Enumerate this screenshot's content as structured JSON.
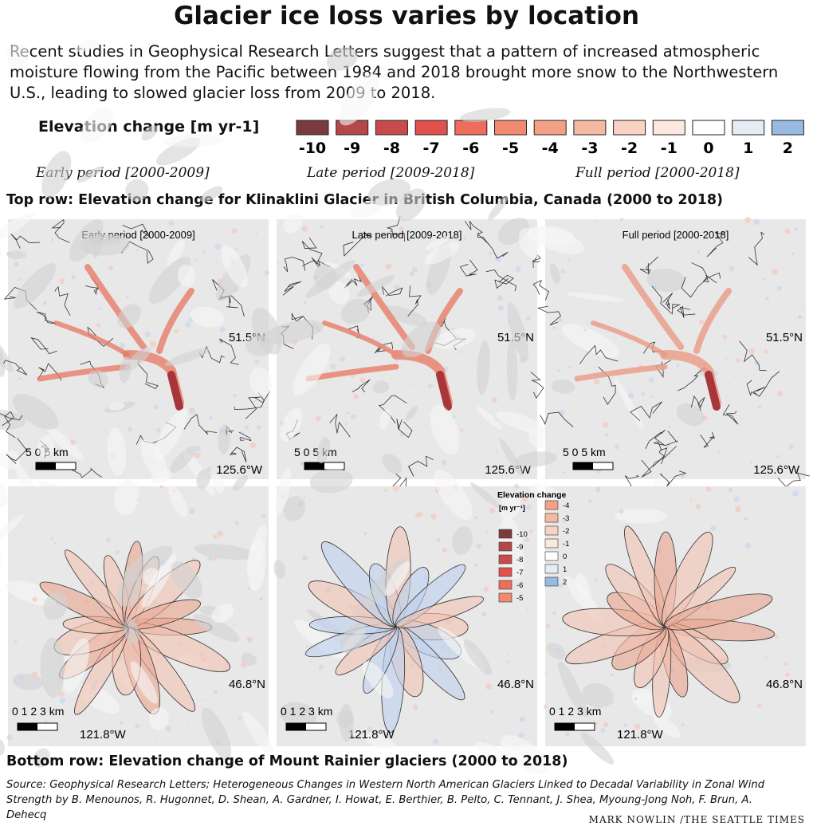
{
  "header": {
    "title": "Glacier ice loss varies by location",
    "description": "Recent studies in Geophysical Research Letters suggest that a pattern of increased atmospheric moisture flowing from the Pacific between 1984 and 2018 brought more snow to the Northwestern U.S., leading to slowed glacier loss from 2009 to 2018."
  },
  "legend": {
    "label": "Elevation change [m yr-1]",
    "items": [
      {
        "value": -10,
        "color": "#7a3a3f"
      },
      {
        "value": -9,
        "color": "#b3474b"
      },
      {
        "value": -8,
        "color": "#c94a4a"
      },
      {
        "value": -7,
        "color": "#e1514d"
      },
      {
        "value": -6,
        "color": "#ee6e5c"
      },
      {
        "value": -5,
        "color": "#f28a70"
      },
      {
        "value": -4,
        "color": "#f4a085"
      },
      {
        "value": -3,
        "color": "#f6b9a1"
      },
      {
        "value": -2,
        "color": "#f9d3c2"
      },
      {
        "value": -1,
        "color": "#fce8de"
      },
      {
        "value": 0,
        "color": "#ffffff"
      },
      {
        "value": 1,
        "color": "#e4ecf6"
      },
      {
        "value": 2,
        "color": "#98b9e1"
      }
    ]
  },
  "period_labels": [
    "Early period [2000-2009]",
    "Late period [2009-2018]",
    "Full period [2000-2018]"
  ],
  "top_row": {
    "caption": "Top row: Elevation change for Klinaklini Glacier in British Columbia, Canada (2000 to 2018)",
    "panels": [
      {
        "label": "Early period [2000-2009]",
        "latitude": "51.5°N",
        "longitude": "125.6°W",
        "scale": "5 0 5 km"
      },
      {
        "label": "Late period [2009-2018]",
        "latitude": "51.5°N",
        "longitude": "125.6°W",
        "scale": "5 0 5 km"
      },
      {
        "label": "Full period [2000-2018]",
        "latitude": "51.5°N",
        "longitude": "125.6°W",
        "scale": "5 0 5 km"
      }
    ]
  },
  "bottom_row": {
    "caption": "Bottom row: Elevation change of Mount Rainier glaciers (2000 to 2018)",
    "panels": [
      {
        "latitude": "46.8°N",
        "longitude": "121.8°W",
        "scale": "0 1 2 3 km"
      },
      {
        "latitude": "46.8°N",
        "longitude": "121.8°W",
        "scale": "0 1 2 3 km"
      },
      {
        "latitude": "46.8°N",
        "longitude": "121.8°W",
        "scale": "0 1 2 3 km"
      }
    ]
  },
  "inset_legend": {
    "title": "Elevation change",
    "unit": "[m yr⁻¹]",
    "items": [
      {
        "value": -10,
        "color": "#7a3a3f"
      },
      {
        "value": -9,
        "color": "#b3474b"
      },
      {
        "value": -8,
        "color": "#c94a4a"
      },
      {
        "value": -7,
        "color": "#e1514d"
      },
      {
        "value": -6,
        "color": "#ee6e5c"
      },
      {
        "value": -5,
        "color": "#f28a70"
      },
      {
        "value": -4,
        "color": "#f4a085"
      },
      {
        "value": -3,
        "color": "#f6b9a1"
      },
      {
        "value": -2,
        "color": "#f9d3c2"
      },
      {
        "value": -1,
        "color": "#fce8de"
      },
      {
        "value": 0,
        "color": "#ffffff"
      },
      {
        "value": 1,
        "color": "#e4ecf6"
      },
      {
        "value": 2,
        "color": "#98b9e1"
      }
    ]
  },
  "source": "Source: Geophysical Research Letters; Heterogeneous Changes in Western North American Glaciers Linked to Decadal Variability in Zonal Wind Strength by B. Menounos, R. Hugonnet, D. Shean, A. Gardner, I. Howat, E. Berthier, B. Pelto, C. Tennant, J. Shea, Myoung-Jong Noh, F. Brun, A. Dehecq",
  "credit": "MARK NOWLIN /THE SEATTLE TIMES"
}
